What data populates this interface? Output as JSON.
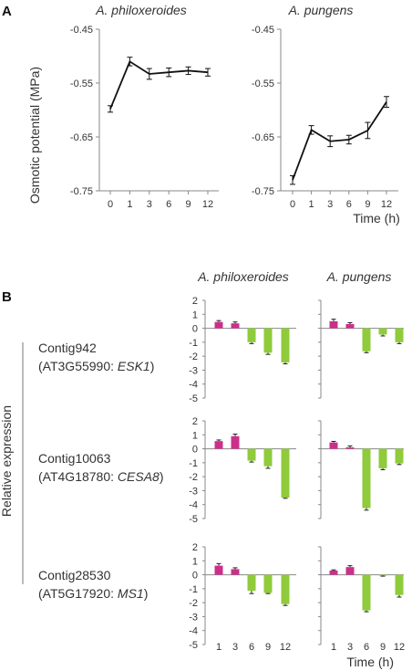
{
  "figure": {
    "panel_a_letter": "A",
    "panel_b_letter": "B"
  },
  "colors": {
    "line": "#111111",
    "up": "#cc2f8a",
    "down": "#8fcb3a",
    "axis": "#888888",
    "text": "#333333"
  },
  "chart_data": [
    {
      "id": "A-left",
      "type": "line",
      "title": "A. philoxeroides",
      "ylabel": "Osmotic potential (MPa)",
      "xlabel": "",
      "x": [
        0,
        1,
        3,
        6,
        9,
        12
      ],
      "x_tick_labels": [
        "0",
        "1",
        "3",
        "6",
        "9",
        "12"
      ],
      "y_tick_labels": [
        "-0.45",
        "-0.55",
        "-0.65",
        "-0.75"
      ],
      "ylim": [
        -0.75,
        -0.45
      ],
      "series": [
        {
          "values": [
            -0.598,
            -0.51,
            -0.533,
            -0.53,
            -0.527,
            -0.53
          ],
          "error": [
            0.006,
            0.008,
            0.01,
            0.008,
            0.007,
            0.007
          ]
        }
      ]
    },
    {
      "id": "A-right",
      "type": "line",
      "title": "A. pungens",
      "ylabel": "",
      "xlabel": "Time (h)",
      "x": [
        0,
        1,
        3,
        6,
        9,
        12
      ],
      "x_tick_labels": [
        "0",
        "1",
        "3",
        "6",
        "9",
        "12"
      ],
      "y_tick_labels": [
        "-0.45",
        "-0.55",
        "-0.65",
        "-0.75"
      ],
      "ylim": [
        -0.75,
        -0.45
      ],
      "series": [
        {
          "values": [
            -0.73,
            -0.637,
            -0.658,
            -0.655,
            -0.638,
            -0.585
          ],
          "error": [
            0.008,
            0.008,
            0.01,
            0.008,
            0.015,
            0.01
          ]
        }
      ]
    },
    {
      "id": "B",
      "type": "bar",
      "ylabel": "Relative expression",
      "xlabel": "Time (h)",
      "column_titles": [
        "A. philoxeroides",
        "A. pungens"
      ],
      "categories": [
        "1",
        "3",
        "6",
        "9",
        "12"
      ],
      "y_tick_labels": [
        "2",
        "1",
        "0",
        "-1",
        "-2",
        "-3",
        "-4",
        "-5"
      ],
      "ylim": [
        -5,
        2
      ],
      "rows": [
        {
          "label_line1": "Contig942",
          "label_line2_prefix": "(AT3G55990: ",
          "label_line2_gene": "ESK1",
          "label_line2_suffix": ")",
          "philoxeroides": {
            "values": [
              0.45,
              0.35,
              -1.0,
              -1.75,
              -2.45
            ],
            "error": [
              0.1,
              0.1,
              0.1,
              0.12,
              0.1
            ]
          },
          "pungens": {
            "values": [
              0.5,
              0.3,
              -1.65,
              -0.45,
              -1.0
            ],
            "error": [
              0.15,
              0.1,
              0.1,
              0.1,
              0.1
            ]
          }
        },
        {
          "label_line1": "Contig10063",
          "label_line2_prefix": "(AT4G18780: ",
          "label_line2_gene": "CESA8",
          "label_line2_suffix": ")",
          "philoxeroides": {
            "values": [
              0.55,
              0.9,
              -0.85,
              -1.25,
              -3.5
            ],
            "error": [
              0.08,
              0.15,
              0.1,
              0.15,
              0.05
            ]
          },
          "pungens": {
            "values": [
              0.45,
              0.1,
              -4.25,
              -1.4,
              -1.05
            ],
            "error": [
              0.08,
              0.1,
              0.15,
              0.1,
              0.08
            ]
          }
        },
        {
          "label_line1": "Contig28530",
          "label_line2_prefix": "(AT5G17920: ",
          "label_line2_gene": "MS1",
          "label_line2_suffix": ")",
          "philoxeroides": {
            "values": [
              0.65,
              0.4,
              -1.15,
              -1.3,
              -2.1
            ],
            "error": [
              0.15,
              0.1,
              0.2,
              0.05,
              0.1
            ]
          },
          "pungens": {
            "values": [
              0.3,
              0.55,
              -2.55,
              -0.05,
              -1.45
            ],
            "error": [
              0.05,
              0.1,
              0.1,
              0.05,
              0.15
            ]
          }
        }
      ]
    }
  ]
}
